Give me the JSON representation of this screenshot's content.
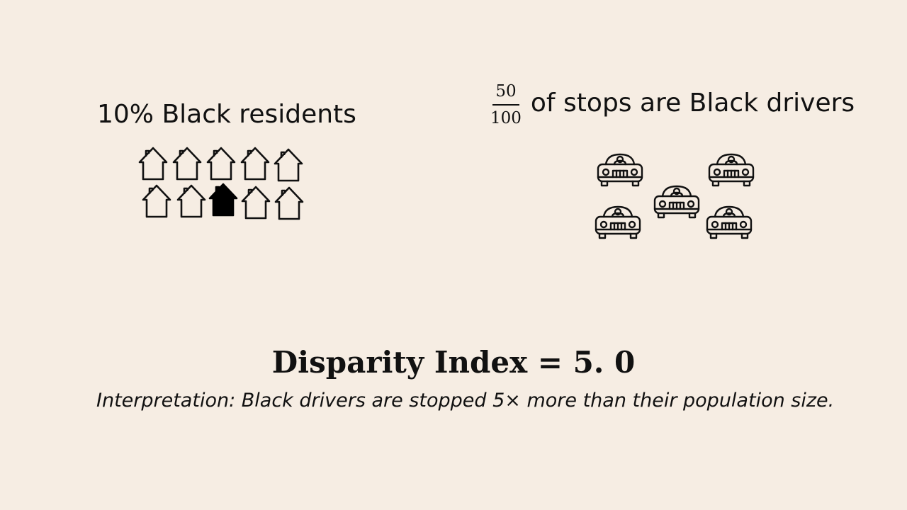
{
  "residents": {
    "label": "10% Black residents",
    "house_count": 10,
    "filled_index": 7
  },
  "stops": {
    "fraction_numerator": "50",
    "fraction_denominator": "100",
    "label": "of stops are Black drivers",
    "car_count": 5
  },
  "result": {
    "index_text": "Disparity Index = 5. 0",
    "interpretation": "Interpretation: Black drivers are stopped 5× more than their population size."
  },
  "icons": {
    "house": "house-icon",
    "car": "car-icon"
  },
  "colors": {
    "background": "#f6ede3",
    "ink": "#111111"
  }
}
